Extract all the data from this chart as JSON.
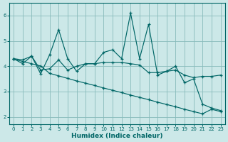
{
  "xlabel": "Humidex (Indice chaleur)",
  "bg_color": "#cce8e8",
  "grid_color": "#88bbbb",
  "line_color": "#006666",
  "xlim": [
    -0.5,
    23.5
  ],
  "ylim": [
    1.7,
    6.5
  ],
  "x": [
    0,
    1,
    2,
    3,
    4,
    5,
    6,
    7,
    8,
    9,
    10,
    11,
    12,
    13,
    14,
    15,
    16,
    17,
    18,
    19,
    20,
    21,
    22,
    23
  ],
  "line_spiky": [
    4.3,
    4.1,
    4.4,
    3.7,
    4.45,
    5.45,
    4.3,
    3.8,
    4.1,
    4.1,
    4.55,
    4.65,
    4.3,
    6.1,
    4.3,
    5.65,
    3.65,
    3.8,
    4.0,
    3.35,
    3.5,
    2.5,
    2.35,
    2.25
  ],
  "line_flat": [
    4.3,
    4.25,
    4.4,
    3.85,
    3.9,
    4.25,
    3.85,
    4.0,
    4.1,
    4.1,
    4.15,
    4.15,
    4.15,
    4.1,
    4.05,
    3.75,
    3.75,
    3.8,
    3.85,
    3.65,
    3.55,
    3.6,
    3.6,
    3.65
  ],
  "line_down": [
    4.28,
    4.19,
    4.1,
    4.01,
    3.72,
    3.62,
    3.52,
    3.42,
    3.33,
    3.24,
    3.14,
    3.05,
    2.96,
    2.86,
    2.77,
    2.68,
    2.58,
    2.49,
    2.4,
    2.3,
    2.21,
    2.12,
    2.3,
    2.21
  ],
  "yticks": [
    2,
    3,
    4,
    5,
    6
  ],
  "xticks": [
    0,
    1,
    2,
    3,
    4,
    5,
    6,
    7,
    8,
    9,
    10,
    11,
    12,
    13,
    14,
    15,
    16,
    17,
    18,
    19,
    20,
    21,
    22,
    23
  ]
}
